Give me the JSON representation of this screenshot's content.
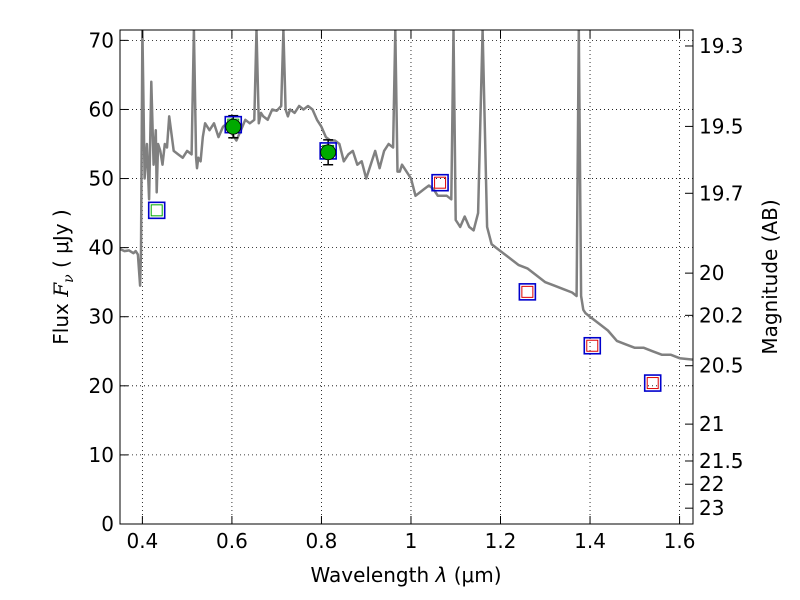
{
  "chart_data": {
    "type": "line",
    "title": "",
    "xlabel": "Wavelength",
    "xlabel_symbol": "λ",
    "xlabel_unit": "(μm)",
    "ylabel": "Flux",
    "ylabel_symbol": "F",
    "ylabel_subscript": "ν",
    "ylabel_unit": "( μJy )",
    "y2label": "Magnitude (AB)",
    "xlim": [
      0.35,
      1.63
    ],
    "ylim": [
      0,
      71.5
    ],
    "grid": true,
    "grid_style": "dotted",
    "x_ticks": [
      0.4,
      0.6,
      0.8,
      1.0,
      1.2,
      1.4,
      1.6
    ],
    "x_tick_labels": [
      "0.4",
      "0.6",
      "0.8",
      "1",
      "1.2",
      "1.4",
      "1.6"
    ],
    "y_ticks": [
      0,
      10,
      20,
      30,
      40,
      50,
      60,
      70
    ],
    "y_tick_labels": [
      "0",
      "10",
      "20",
      "30",
      "40",
      "50",
      "60",
      "70"
    ],
    "y2_ticks": [
      19.3,
      19.5,
      19.7,
      20.0,
      20.2,
      20.5,
      21.0,
      21.5,
      22.0,
      23.0
    ],
    "y2_tick_labels": [
      "19.3",
      "19.5",
      "19.7",
      "20",
      "20.2",
      "20.5",
      "21",
      "21.5",
      "22",
      "23"
    ],
    "colors": {
      "template": "#808080",
      "observed": "#00aa00",
      "model_box": "#0000cc",
      "model_inner_optical": "#00aa00",
      "model_inner_nir": "#dd0000",
      "errorbar": "#000000"
    },
    "series": [
      {
        "name": "template-spectrum",
        "x": [
          0.35,
          0.36,
          0.37,
          0.38,
          0.385,
          0.39,
          0.395,
          0.397,
          0.4,
          0.405,
          0.41,
          0.415,
          0.42,
          0.425,
          0.43,
          0.432,
          0.435,
          0.44,
          0.445,
          0.45,
          0.455,
          0.46,
          0.47,
          0.48,
          0.49,
          0.5,
          0.51,
          0.515,
          0.52,
          0.522,
          0.525,
          0.53,
          0.535,
          0.54,
          0.55,
          0.56,
          0.57,
          0.58,
          0.59,
          0.6,
          0.61,
          0.62,
          0.63,
          0.64,
          0.65,
          0.655,
          0.66,
          0.665,
          0.67,
          0.68,
          0.69,
          0.7,
          0.71,
          0.715,
          0.72,
          0.725,
          0.73,
          0.74,
          0.75,
          0.76,
          0.77,
          0.78,
          0.79,
          0.8,
          0.81,
          0.82,
          0.83,
          0.84,
          0.85,
          0.86,
          0.87,
          0.88,
          0.89,
          0.9,
          0.91,
          0.92,
          0.93,
          0.94,
          0.95,
          0.96,
          0.965,
          0.97,
          0.975,
          0.98,
          0.99,
          1.0,
          1.01,
          1.02,
          1.03,
          1.04,
          1.05,
          1.06,
          1.07,
          1.08,
          1.09,
          1.095,
          1.1,
          1.105,
          1.11,
          1.12,
          1.13,
          1.14,
          1.15,
          1.16,
          1.17,
          1.18,
          1.2,
          1.22,
          1.24,
          1.26,
          1.28,
          1.3,
          1.32,
          1.34,
          1.36,
          1.37,
          1.375,
          1.38,
          1.385,
          1.39,
          1.4,
          1.42,
          1.44,
          1.46,
          1.48,
          1.5,
          1.52,
          1.54,
          1.56,
          1.58,
          1.6,
          1.63
        ],
        "y": [
          39.8,
          39.5,
          39.6,
          39.2,
          39.5,
          39.0,
          34.5,
          39.5,
          71.5,
          50.0,
          55.0,
          47.0,
          64.0,
          52.0,
          57.0,
          48.0,
          55.0,
          54.0,
          52.0,
          55.0,
          54.5,
          59.0,
          54.0,
          53.5,
          53.0,
          54.0,
          53.5,
          71.5,
          53.0,
          51.5,
          53.0,
          52.5,
          56.0,
          58.0,
          57.0,
          58.0,
          56.0,
          57.5,
          58.0,
          56.5,
          55.5,
          57.0,
          58.5,
          58.0,
          58.5,
          71.5,
          58.0,
          59.5,
          59.0,
          58.5,
          60.0,
          59.8,
          60.5,
          71.5,
          60.0,
          59.0,
          60.0,
          59.5,
          60.5,
          60.0,
          60.5,
          60.0,
          58.5,
          57.5,
          56.0,
          55.5,
          55.5,
          55.0,
          52.5,
          53.5,
          54.0,
          52.0,
          52.5,
          50.0,
          52.0,
          54.0,
          51.5,
          54.0,
          55.0,
          54.5,
          71.5,
          51.0,
          51.0,
          52.0,
          51.0,
          50.0,
          47.5,
          48.0,
          48.5,
          49.0,
          48.5,
          47.5,
          47.5,
          47.5,
          47.0,
          71.5,
          44.0,
          43.5,
          43.0,
          44.5,
          43.0,
          42.5,
          45.0,
          71.5,
          43.0,
          40.5,
          39.5,
          38.5,
          37.5,
          37.0,
          36.0,
          35.0,
          34.5,
          34.0,
          33.5,
          33.0,
          71.5,
          33.0,
          31.0,
          30.5,
          30.0,
          29.0,
          28.0,
          26.5,
          26.0,
          25.5,
          25.5,
          25.0,
          24.5,
          24.5,
          24.0,
          23.8
        ]
      },
      {
        "name": "observed-photometry",
        "x": [
          0.603,
          0.815
        ],
        "y": [
          57.5,
          53.8
        ],
        "err": [
          1.6,
          1.8
        ]
      },
      {
        "name": "model-photometry",
        "x": [
          0.432,
          0.603,
          0.815,
          1.065,
          1.26,
          1.405,
          1.54
        ],
        "y": [
          45.4,
          57.8,
          54.0,
          49.4,
          33.6,
          25.8,
          20.4
        ]
      }
    ]
  }
}
